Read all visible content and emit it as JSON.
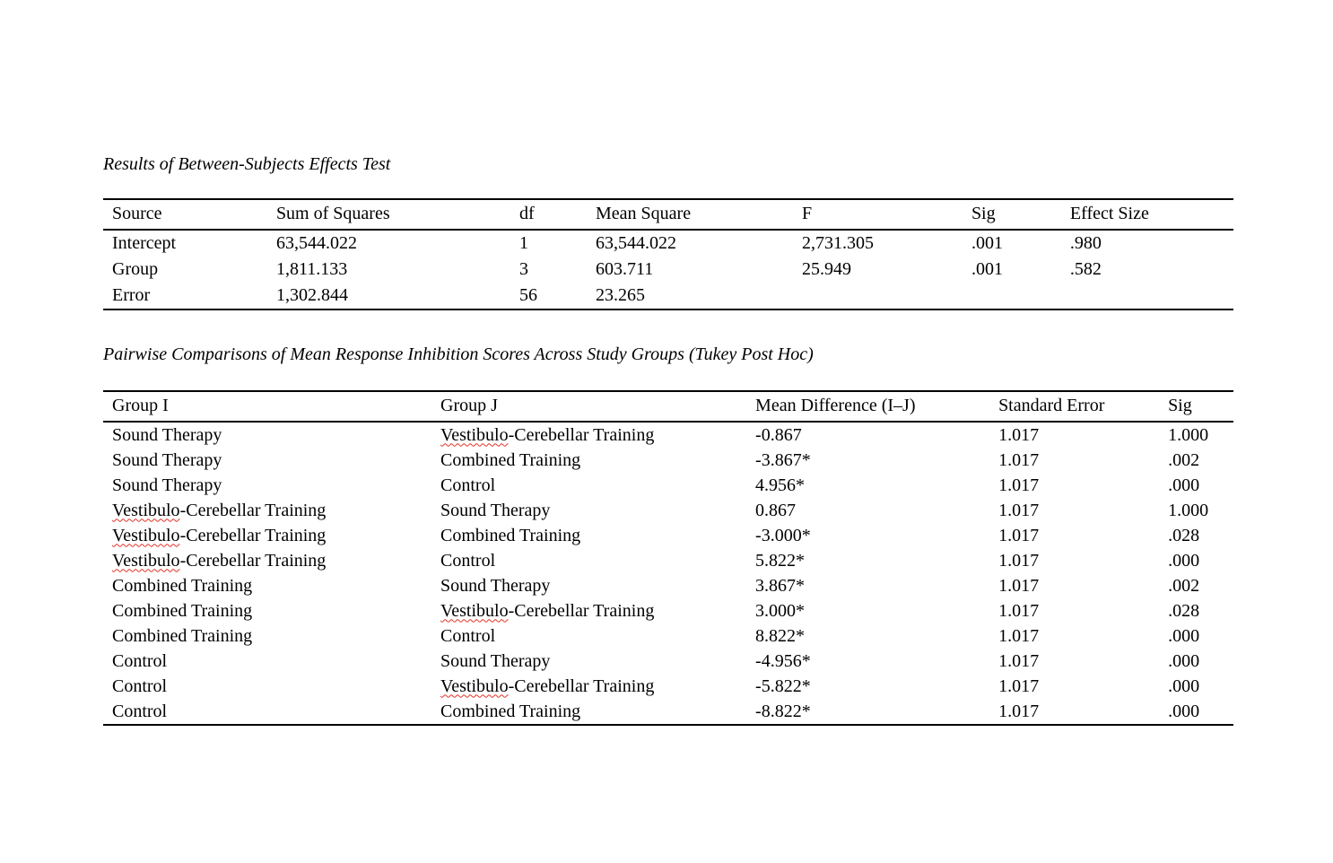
{
  "page": {
    "background": "#ffffff",
    "text_color": "#000000"
  },
  "spellcheck": {
    "marked_word": "Vestibulo",
    "underline_color": "#e03226"
  },
  "tables": [
    {
      "title": "Results of Between-Subjects Effects Test",
      "columns": [
        "Source",
        "Sum of Squares",
        "df",
        "Mean Square",
        "F",
        "Sig",
        "Effect Size"
      ],
      "col_widths": [
        "14.52%",
        "21.51%",
        "6.75%",
        "18.25%",
        "15.0%",
        "8.73%",
        "15.24%"
      ],
      "rows": [
        [
          "Intercept",
          "63,544.022",
          "1",
          "63,544.022",
          "2,731.305",
          ".001",
          ".980"
        ],
        [
          "Group",
          "1,811.133",
          "3",
          "603.711",
          "25.949",
          ".001",
          ".582"
        ],
        [
          "Error",
          "1,302.844",
          "56",
          "23.265",
          "",
          "",
          ""
        ]
      ]
    },
    {
      "title": "Pairwise Comparisons of Mean Response Inhibition Scores Across Study Groups (Tukey Post Hoc)",
      "columns": [
        "Group I",
        "Group J",
        "Mean Difference (I–J)",
        "Standard Error",
        "Sig"
      ],
      "col_widths": [
        "29.05%",
        "27.86%",
        "21.51%",
        "15.0%",
        "6.58%"
      ],
      "rows": [
        [
          "Sound Therapy",
          "Vestibulo-Cerebellar Training",
          "-0.867",
          "1.017",
          "1.000"
        ],
        [
          "Sound Therapy",
          "Combined Training",
          "-3.867*",
          "1.017",
          ".002"
        ],
        [
          "Sound Therapy",
          "Control",
          "4.956*",
          "1.017",
          ".000"
        ],
        [
          "Vestibulo-Cerebellar Training",
          "Sound Therapy",
          "0.867",
          "1.017",
          "1.000"
        ],
        [
          "Vestibulo-Cerebellar Training",
          "Combined Training",
          "-3.000*",
          "1.017",
          ".028"
        ],
        [
          "Vestibulo-Cerebellar Training",
          "Control",
          "5.822*",
          "1.017",
          ".000"
        ],
        [
          "Combined Training",
          "Sound Therapy",
          "3.867*",
          "1.017",
          ".002"
        ],
        [
          "Combined Training",
          "Vestibulo-Cerebellar Training",
          "3.000*",
          "1.017",
          ".028"
        ],
        [
          "Combined Training",
          "Control",
          "8.822*",
          "1.017",
          ".000"
        ],
        [
          "Control",
          "Sound Therapy",
          "-4.956*",
          "1.017",
          ".000"
        ],
        [
          "Control",
          "Vestibulo-Cerebellar Training",
          "-5.822*",
          "1.017",
          ".000"
        ],
        [
          "Control",
          "Combined Training",
          "-8.822*",
          "1.017",
          ".000"
        ]
      ]
    }
  ]
}
